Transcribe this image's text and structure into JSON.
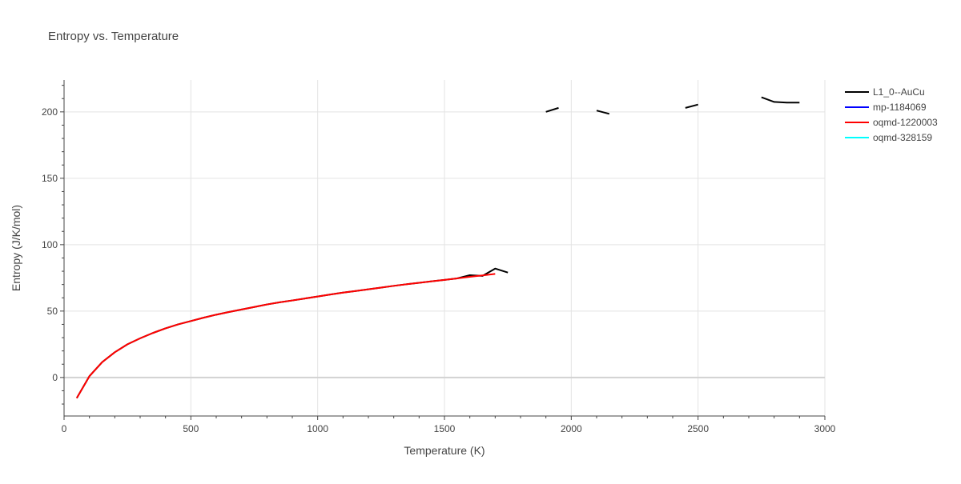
{
  "chart_data": {
    "type": "line",
    "title": "Entropy vs. Temperature",
    "xlabel": "Temperature (K)",
    "ylabel": "Entropy (J/K/mol)",
    "xlim": [
      0,
      3000
    ],
    "ylim": [
      -29,
      224
    ],
    "xticks": [
      0,
      500,
      1000,
      1500,
      2000,
      2500,
      3000
    ],
    "yticks": [
      0,
      50,
      100,
      150,
      200
    ],
    "xtick_labels": [
      "0",
      "500",
      "1000",
      "1500",
      "2000",
      "2500",
      "3000"
    ],
    "ytick_labels": [
      "0",
      "50",
      "100",
      "150",
      "200"
    ],
    "grid": true,
    "legend_position": "top-right",
    "series": [
      {
        "name": "L1_0--AuCu",
        "color": "#000000",
        "segments": [
          [
            [
              50,
              -15.5
            ],
            [
              100,
              1.0
            ],
            [
              150,
              11.5
            ],
            [
              200,
              19.0
            ],
            [
              250,
              25.0
            ],
            [
              300,
              29.5
            ],
            [
              350,
              33.5
            ],
            [
              400,
              37.0
            ],
            [
              450,
              40.0
            ],
            [
              500,
              42.5
            ],
            [
              550,
              45.0
            ],
            [
              600,
              47.3
            ],
            [
              650,
              49.3
            ],
            [
              700,
              51.2
            ],
            [
              750,
              53.1
            ],
            [
              800,
              55.0
            ],
            [
              850,
              56.6
            ],
            [
              900,
              58.0
            ],
            [
              950,
              59.5
            ],
            [
              1000,
              61.0
            ],
            [
              1050,
              62.5
            ],
            [
              1100,
              63.9
            ],
            [
              1150,
              65.1
            ],
            [
              1200,
              66.4
            ],
            [
              1250,
              67.7
            ],
            [
              1300,
              69.0
            ],
            [
              1350,
              70.2
            ],
            [
              1400,
              71.3
            ],
            [
              1450,
              72.4
            ],
            [
              1500,
              73.5
            ],
            [
              1550,
              74.6
            ],
            [
              1600,
              77.0
            ],
            [
              1650,
              76.5
            ],
            [
              1700,
              82.0
            ],
            [
              1750,
              79.0
            ]
          ],
          [
            [
              1900,
              200.0
            ],
            [
              1950,
              203.0
            ]
          ],
          [
            [
              2100,
              201.0
            ],
            [
              2150,
              198.5
            ]
          ],
          [
            [
              2450,
              203.0
            ],
            [
              2500,
              205.5
            ]
          ],
          [
            [
              2750,
              211.0
            ],
            [
              2800,
              207.5
            ],
            [
              2850,
              207.0
            ],
            [
              2900,
              207.0
            ]
          ]
        ]
      },
      {
        "name": "mp-1184069",
        "color": "#0000ff",
        "segments": []
      },
      {
        "name": "oqmd-1220003",
        "color": "#ff0000",
        "segments": [
          [
            [
              50,
              -15.5
            ],
            [
              100,
              1.0
            ],
            [
              150,
              11.5
            ],
            [
              200,
              19.0
            ],
            [
              250,
              25.0
            ],
            [
              300,
              29.5
            ],
            [
              350,
              33.5
            ],
            [
              400,
              37.0
            ],
            [
              450,
              40.0
            ],
            [
              500,
              42.5
            ],
            [
              550,
              45.0
            ],
            [
              600,
              47.3
            ],
            [
              650,
              49.3
            ],
            [
              700,
              51.2
            ],
            [
              750,
              53.1
            ],
            [
              800,
              55.0
            ],
            [
              850,
              56.6
            ],
            [
              900,
              58.0
            ],
            [
              950,
              59.5
            ],
            [
              1000,
              61.0
            ],
            [
              1050,
              62.5
            ],
            [
              1100,
              63.9
            ],
            [
              1150,
              65.1
            ],
            [
              1200,
              66.4
            ],
            [
              1250,
              67.7
            ],
            [
              1300,
              69.0
            ],
            [
              1350,
              70.2
            ],
            [
              1400,
              71.3
            ],
            [
              1450,
              72.4
            ],
            [
              1500,
              73.5
            ],
            [
              1550,
              74.6
            ],
            [
              1600,
              75.8
            ],
            [
              1650,
              76.9
            ],
            [
              1700,
              78.0
            ]
          ]
        ]
      },
      {
        "name": "oqmd-328159",
        "color": "#00ffff",
        "segments": []
      }
    ]
  }
}
